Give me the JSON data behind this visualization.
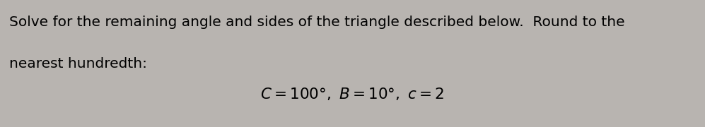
{
  "line1": "Solve for the remaining angle and sides of the triangle described below.  Round to the",
  "line2": "nearest hundredth:",
  "bg_color": "#b8b4b0",
  "text_color": "#000000",
  "font_size_main": 14.5,
  "font_size_formula": 15.5,
  "fig_width": 9.97,
  "fig_height": 1.8,
  "dpi": 100
}
